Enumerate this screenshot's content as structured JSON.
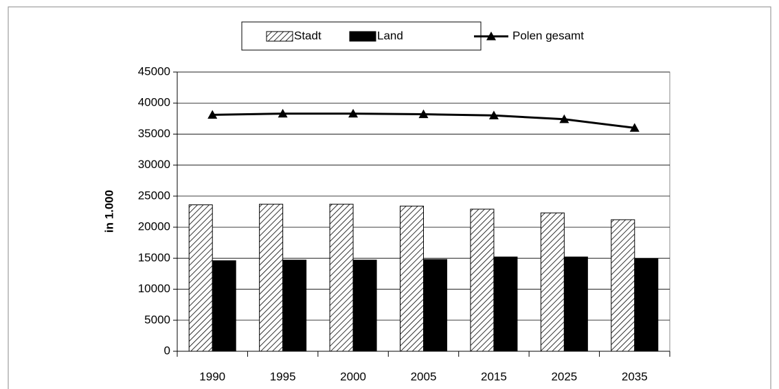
{
  "chart_data": {
    "type": "bar",
    "y_label": "in 1.000",
    "categories": [
      "1990",
      "1995",
      "2000",
      "2005",
      "2015",
      "2025",
      "2035"
    ],
    "series": [
      {
        "name": "Stadt",
        "type": "bar",
        "color": "#000000",
        "pattern": "hatch",
        "values": [
          23600,
          23700,
          23700,
          23400,
          22900,
          22300,
          21200
        ]
      },
      {
        "name": "Land",
        "type": "bar",
        "color": "#000000",
        "values": [
          14600,
          14700,
          14700,
          14800,
          15200,
          15200,
          14900
        ]
      },
      {
        "name": "Polen gesamt",
        "type": "line",
        "color": "#000000",
        "marker": "triangle",
        "values": [
          38100,
          38300,
          38300,
          38200,
          38000,
          37400,
          36000
        ]
      }
    ],
    "ylim": [
      0,
      45000
    ],
    "yticks": [
      0,
      5000,
      10000,
      15000,
      20000,
      25000,
      30000,
      35000,
      40000,
      45000
    ],
    "grid": true,
    "legend": "top"
  }
}
